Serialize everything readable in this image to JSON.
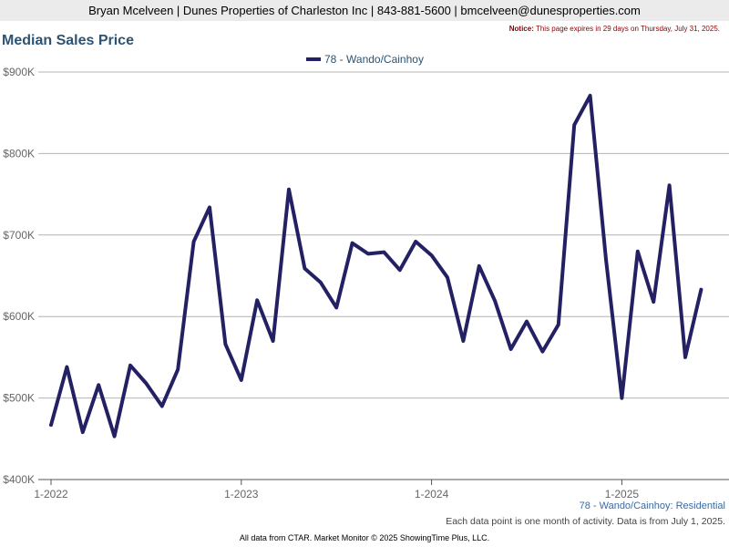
{
  "header": {
    "contact": "Bryan Mcelveen | Dunes Properties of Charleston Inc | 843-881-5600 | bmcelveen@dunesproperties.com"
  },
  "notice": {
    "label": "Notice:",
    "text": "This page expires in 29 days on Thursday, July 31, 2025."
  },
  "footer": {
    "series_caption": "78 - Wando/Cainhoy: Residential",
    "note": "Each data point is one month of activity. Data is from July 1, 2025.",
    "source": "All data from CTAR. Market Monitor © 2025 ShowingTime Plus, LLC."
  },
  "colors": {
    "line": "#232163",
    "title": "#2c5373",
    "grid": "#b4b4b4"
  },
  "chart_data": {
    "type": "line",
    "title": "Median Sales Price",
    "grid": true,
    "legend": "top-center",
    "ylim": [
      400000,
      900000
    ],
    "y_ticks": [
      400000,
      500000,
      600000,
      700000,
      800000,
      900000
    ],
    "y_tick_labels": [
      "$400K",
      "$500K",
      "$600K",
      "$700K",
      "$800K",
      "$900K"
    ],
    "x_ticks": [
      "2022-01",
      "2023-01",
      "2024-01",
      "2025-01"
    ],
    "x_tick_labels": [
      "1-2022",
      "1-2023",
      "1-2024",
      "1-2025"
    ],
    "x": [
      "2022-01",
      "2022-02",
      "2022-03",
      "2022-04",
      "2022-05",
      "2022-06",
      "2022-07",
      "2022-08",
      "2022-09",
      "2022-10",
      "2022-11",
      "2022-12",
      "2023-01",
      "2023-02",
      "2023-03",
      "2023-04",
      "2023-05",
      "2023-06",
      "2023-07",
      "2023-08",
      "2023-09",
      "2023-10",
      "2023-11",
      "2023-12",
      "2024-01",
      "2024-02",
      "2024-03",
      "2024-04",
      "2024-05",
      "2024-06",
      "2024-07",
      "2024-08",
      "2024-09",
      "2024-10",
      "2024-11",
      "2024-12",
      "2025-01",
      "2025-02",
      "2025-03",
      "2025-04",
      "2025-05",
      "2025-06"
    ],
    "series": [
      {
        "name": "78 - Wando/Cainhoy",
        "values": [
          467000,
          538000,
          458000,
          516000,
          453000,
          540000,
          518000,
          490000,
          535000,
          692000,
          734000,
          566000,
          522000,
          620000,
          570000,
          756000,
          659000,
          642000,
          611000,
          690000,
          677000,
          679000,
          657000,
          692000,
          675000,
          648000,
          570000,
          662000,
          619000,
          560000,
          594000,
          557000,
          590000,
          835000,
          871000,
          670000,
          500000,
          680000,
          618000,
          761000,
          550000,
          633000
        ]
      }
    ]
  }
}
